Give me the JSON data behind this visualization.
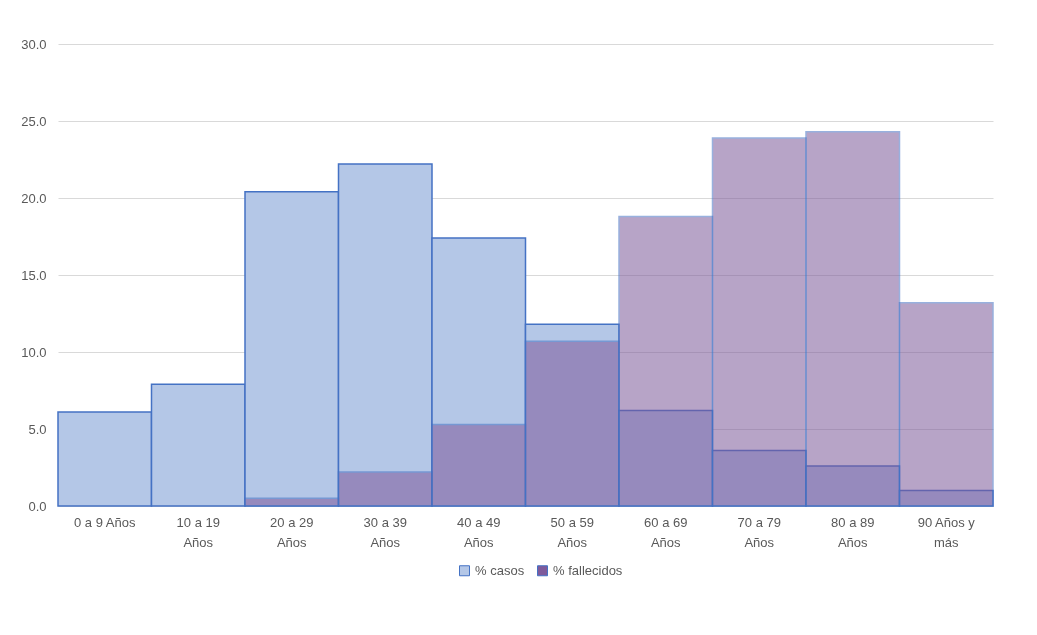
{
  "chart_data": {
    "type": "bar",
    "categories": [
      "0 a 9 Años",
      "10 a 19 Años",
      "20 a 29 Años",
      "30 a 39 Años",
      "40 a 49 Años",
      "50 a 59 Años",
      "60 a 69 Años",
      "70 a 79 Años",
      "80 a 89 Años",
      "90 Años y más"
    ],
    "series": [
      {
        "name": "% casos",
        "color": "#b4c7e7",
        "values": [
          6.1,
          7.9,
          20.4,
          22.2,
          17.4,
          11.8,
          6.2,
          3.6,
          2.6,
          1.0
        ]
      },
      {
        "name": "% fallecidos",
        "color": "#7e5a9b",
        "values": [
          0,
          0,
          0.5,
          2.2,
          5.3,
          10.7,
          18.8,
          23.9,
          24.3,
          13.2
        ]
      }
    ],
    "ylim": [
      0,
      30
    ],
    "yticks": [
      {
        "value": 0,
        "label": "0.0"
      },
      {
        "value": 5,
        "label": "5.0"
      },
      {
        "value": 10,
        "label": "10.0"
      },
      {
        "value": 15,
        "label": "15.0"
      },
      {
        "value": 20,
        "label": "20.0"
      },
      {
        "value": 25,
        "label": "25.0"
      },
      {
        "value": 30,
        "label": "30.0"
      }
    ],
    "grid": "y",
    "legend": "bottom"
  }
}
